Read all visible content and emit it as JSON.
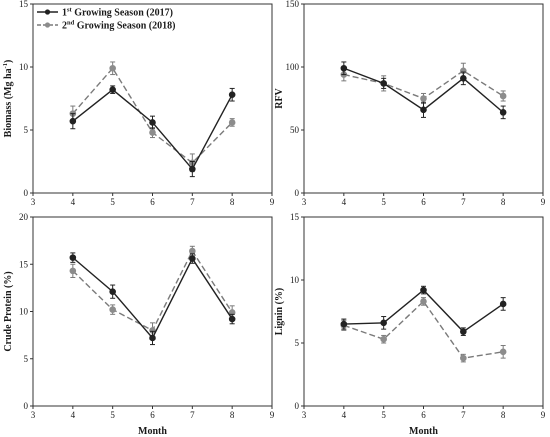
{
  "legend": {
    "entries": [
      {
        "series": "s2017",
        "pre": "1",
        "sup": "st",
        "post": " Growing Season (2017)"
      },
      {
        "series": "s2018",
        "pre": "2",
        "sup": "nd",
        "post": " Growing Season (2018)"
      }
    ]
  },
  "styles": {
    "s2017": {
      "color": "#222222",
      "dash": "none",
      "marker": "#222222"
    },
    "s2018": {
      "color": "#7a7a7a",
      "dash": "6,3",
      "marker": "#8c8c8c"
    }
  },
  "chart_data": [
    {
      "id": "biomass",
      "type": "line",
      "ylabel": "Biomass (Mg ha-1)",
      "ylabel_main": "Biomass (Mg ha",
      "ylabel_sup": "-1",
      "ylabel_end": ")",
      "xlabel": "",
      "xlim": [
        3,
        9
      ],
      "ylim": [
        0,
        15
      ],
      "xticks": [
        3,
        4,
        5,
        6,
        7,
        8,
        9
      ],
      "yticks": [
        0,
        5,
        10,
        15
      ],
      "x": [
        4,
        5,
        6,
        7,
        8
      ],
      "series": [
        {
          "key": "s2017",
          "values": [
            5.7,
            8.2,
            5.6,
            1.9,
            7.8
          ],
          "errors": [
            0.6,
            0.3,
            0.5,
            0.6,
            0.5
          ]
        },
        {
          "key": "s2018",
          "values": [
            6.3,
            9.9,
            4.8,
            2.4,
            5.6
          ],
          "errors": [
            0.6,
            0.5,
            0.4,
            0.7,
            0.3
          ]
        }
      ]
    },
    {
      "id": "rfv",
      "type": "line",
      "ylabel": "RFV",
      "xlabel": "",
      "xlim": [
        3,
        9
      ],
      "ylim": [
        0,
        150
      ],
      "xticks": [
        3,
        4,
        5,
        6,
        7,
        8,
        9
      ],
      "yticks": [
        0,
        50,
        100,
        150
      ],
      "x": [
        4,
        5,
        6,
        7,
        8
      ],
      "series": [
        {
          "key": "s2017",
          "values": [
            99,
            87,
            66,
            91,
            64
          ],
          "errors": [
            5,
            4,
            6,
            5,
            5
          ]
        },
        {
          "key": "s2018",
          "values": [
            94,
            87,
            75,
            97,
            77
          ],
          "errors": [
            5,
            6,
            4,
            6,
            4
          ]
        }
      ]
    },
    {
      "id": "crude-protein",
      "type": "line",
      "ylabel": "Crude Protein (%)",
      "xlabel": "Month",
      "xlim": [
        3,
        9
      ],
      "ylim": [
        0,
        20
      ],
      "xticks": [
        3,
        4,
        5,
        6,
        7,
        8,
        9
      ],
      "yticks": [
        0,
        5,
        10,
        15,
        20
      ],
      "x": [
        4,
        5,
        6,
        7,
        8
      ],
      "series": [
        {
          "key": "s2017",
          "values": [
            15.7,
            12.1,
            7.2,
            15.6,
            9.2
          ],
          "errors": [
            0.5,
            0.7,
            0.7,
            0.5,
            0.5
          ]
        },
        {
          "key": "s2018",
          "values": [
            14.3,
            10.2,
            8.0,
            16.4,
            9.9
          ],
          "errors": [
            0.7,
            0.5,
            0.8,
            0.5,
            0.7
          ]
        }
      ]
    },
    {
      "id": "lignin",
      "type": "line",
      "ylabel": "Lignin (%)",
      "xlabel": "Month",
      "xlim": [
        3,
        9
      ],
      "ylim": [
        0,
        15
      ],
      "xticks": [
        3,
        4,
        5,
        6,
        7,
        8,
        9
      ],
      "yticks": [
        0,
        5,
        10,
        15
      ],
      "x": [
        4,
        5,
        6,
        7,
        8
      ],
      "series": [
        {
          "key": "s2017",
          "values": [
            6.5,
            6.6,
            9.2,
            5.9,
            8.1
          ],
          "errors": [
            0.4,
            0.5,
            0.3,
            0.3,
            0.5
          ]
        },
        {
          "key": "s2018",
          "values": [
            6.4,
            5.3,
            8.3,
            3.8,
            4.3
          ],
          "errors": [
            0.4,
            0.3,
            0.3,
            0.3,
            0.5
          ]
        }
      ]
    }
  ]
}
